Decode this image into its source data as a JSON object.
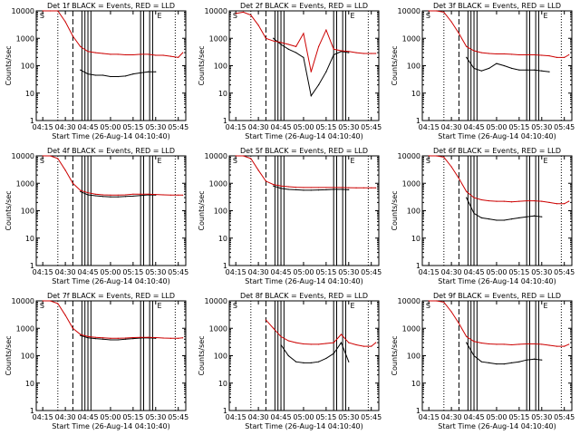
{
  "colors": {
    "events": "#000000",
    "lld": "#cc0000",
    "axis": "#000000"
  },
  "common": {
    "xlabel": "Start Time (26-Aug-14 04:10:40)",
    "ylabel": "Counts/sec",
    "x_tick_labels": [
      "04:15",
      "04:30",
      "04:45",
      "05:00",
      "05:15",
      "05:30",
      "05:45"
    ],
    "y_tick_labels": [
      "1",
      "10",
      "100",
      "1000",
      "10000"
    ]
  },
  "chart_data": [
    {
      "type": "line",
      "title": "Det 1f BLACK = Events, RED = LLD",
      "xlabel": "Start Time (26-Aug-14 04:10:40)",
      "ylabel": "Counts/sec",
      "yscale": "log",
      "ylim": [
        1,
        10000
      ],
      "xlim": [
        "04:10:40",
        "05:50"
      ],
      "x": [
        "04:15",
        "04:20",
        "04:25",
        "04:30",
        "04:35",
        "04:40",
        "04:45",
        "04:50",
        "04:55",
        "05:00",
        "05:05",
        "05:10",
        "05:15",
        "05:20",
        "05:25",
        "05:30",
        "05:35",
        "05:40",
        "05:45",
        "05:48"
      ],
      "series": [
        {
          "name": "Events",
          "values": [
            null,
            null,
            null,
            null,
            null,
            70,
            50,
            45,
            45,
            40,
            40,
            42,
            50,
            55,
            60,
            60,
            null,
            null,
            null,
            null
          ]
        },
        {
          "name": "LLD",
          "values": [
            10000,
            10000,
            10000,
            4000,
            1200,
            500,
            330,
            300,
            280,
            260,
            260,
            250,
            250,
            260,
            260,
            240,
            240,
            220,
            200,
            300
          ]
        }
      ],
      "vlines_dashed": [
        "04:35"
      ],
      "vlines_dotted": [
        "04:25",
        "05:43"
      ],
      "vlines_solid": [
        "04:41",
        "04:43",
        "04:45",
        "04:47",
        "05:20",
        "05:22",
        "05:26",
        "05:28"
      ],
      "markers": [
        "S",
        "E"
      ]
    },
    {
      "type": "line",
      "title": "Det 2f BLACK = Events, RED = LLD",
      "xlabel": "Start Time (26-Aug-14 04:10:40)",
      "ylabel": "Counts/sec",
      "yscale": "log",
      "ylim": [
        1,
        10000
      ],
      "xlim": [
        "04:10:40",
        "05:50"
      ],
      "x": [
        "04:15",
        "04:20",
        "04:25",
        "04:30",
        "04:35",
        "04:40",
        "04:45",
        "04:50",
        "04:55",
        "05:00",
        "05:05",
        "05:10",
        "05:15",
        "05:20",
        "05:25",
        "05:30",
        "05:35",
        "05:40",
        "05:45",
        "05:48"
      ],
      "series": [
        {
          "name": "Events",
          "values": [
            null,
            null,
            null,
            null,
            null,
            1000,
            600,
            400,
            300,
            200,
            8,
            20,
            60,
            250,
            330,
            300,
            null,
            null,
            null,
            null
          ]
        },
        {
          "name": "LLD",
          "values": [
            8000,
            9000,
            7000,
            3000,
            1000,
            800,
            700,
            600,
            500,
            1500,
            60,
            500,
            2000,
            400,
            350,
            330,
            300,
            280,
            280,
            280
          ]
        }
      ],
      "vlines_dashed": [
        "04:35"
      ],
      "vlines_dotted": [
        "04:25",
        "05:43"
      ],
      "vlines_solid": [
        "04:41",
        "04:43",
        "04:45",
        "04:47",
        "05:20",
        "05:22",
        "05:26",
        "05:28"
      ],
      "markers": [
        "S",
        "E"
      ]
    },
    {
      "type": "line",
      "title": "Det 3f BLACK = Events, RED = LLD",
      "xlabel": "Start Time (26-Aug-14 04:10:40)",
      "ylabel": "Counts/sec",
      "yscale": "log",
      "ylim": [
        1,
        10000
      ],
      "xlim": [
        "04:10:40",
        "05:50"
      ],
      "x": [
        "04:15",
        "04:20",
        "04:25",
        "04:30",
        "04:35",
        "04:40",
        "04:45",
        "04:50",
        "04:55",
        "05:00",
        "05:05",
        "05:10",
        "05:15",
        "05:20",
        "05:25",
        "05:30",
        "05:35",
        "05:40",
        "05:45",
        "05:48"
      ],
      "series": [
        {
          "name": "Events",
          "values": [
            null,
            null,
            null,
            null,
            null,
            200,
            80,
            65,
            80,
            120,
            100,
            80,
            70,
            70,
            70,
            65,
            60,
            null,
            null,
            null
          ]
        },
        {
          "name": "LLD",
          "values": [
            10000,
            10000,
            9000,
            4000,
            1500,
            500,
            350,
            300,
            280,
            270,
            270,
            260,
            250,
            250,
            250,
            240,
            230,
            200,
            200,
            250
          ]
        }
      ],
      "vlines_dashed": [
        "04:35"
      ],
      "vlines_dotted": [
        "04:25",
        "05:43"
      ],
      "vlines_solid": [
        "04:41",
        "04:43",
        "04:45",
        "04:47",
        "05:20",
        "05:22",
        "05:26",
        "05:28"
      ],
      "markers": [
        "S",
        "E"
      ]
    },
    {
      "type": "line",
      "title": "Det 4f BLACK = Events, RED = LLD",
      "xlabel": "Start Time (26-Aug-14 04:10:40)",
      "ylabel": "Counts/sec",
      "yscale": "log",
      "ylim": [
        1,
        10000
      ],
      "xlim": [
        "04:10:40",
        "05:50"
      ],
      "x": [
        "04:15",
        "04:20",
        "04:25",
        "04:30",
        "04:35",
        "04:40",
        "04:45",
        "04:50",
        "04:55",
        "05:00",
        "05:05",
        "05:10",
        "05:15",
        "05:20",
        "05:25",
        "05:30",
        "05:35",
        "05:40",
        "05:45",
        "05:48"
      ],
      "series": [
        {
          "name": "Events",
          "values": [
            null,
            null,
            null,
            null,
            null,
            500,
            380,
            350,
            330,
            320,
            320,
            330,
            340,
            360,
            380,
            370,
            null,
            null,
            null,
            null
          ]
        },
        {
          "name": "LLD",
          "values": [
            10000,
            10000,
            8000,
            3000,
            1000,
            550,
            450,
            400,
            380,
            370,
            370,
            380,
            400,
            400,
            400,
            390,
            380,
            370,
            370,
            370
          ]
        }
      ],
      "vlines_dashed": [
        "04:35"
      ],
      "vlines_dotted": [
        "04:25",
        "05:43"
      ],
      "vlines_solid": [
        "04:41",
        "04:43",
        "04:45",
        "04:47",
        "05:20",
        "05:22",
        "05:26",
        "05:28"
      ],
      "markers": [
        "S",
        "E"
      ]
    },
    {
      "type": "line",
      "title": "Det 5f BLACK = Events, RED = LLD",
      "xlabel": "Start Time (26-Aug-14 04:10:40)",
      "ylabel": "Counts/sec",
      "yscale": "log",
      "ylim": [
        1,
        10000
      ],
      "xlim": [
        "04:10:40",
        "05:50"
      ],
      "x": [
        "04:15",
        "04:20",
        "04:25",
        "04:30",
        "04:35",
        "04:40",
        "04:45",
        "04:50",
        "04:55",
        "05:00",
        "05:05",
        "05:10",
        "05:15",
        "05:20",
        "05:25",
        "05:30",
        "05:35",
        "05:40",
        "05:45",
        "05:48"
      ],
      "series": [
        {
          "name": "Events",
          "values": [
            null,
            null,
            null,
            null,
            null,
            800,
            650,
            600,
            580,
            560,
            560,
            570,
            580,
            600,
            600,
            580,
            null,
            null,
            null,
            null
          ]
        },
        {
          "name": "LLD",
          "values": [
            10000,
            10000,
            8000,
            3000,
            1200,
            900,
            800,
            750,
            720,
            700,
            700,
            700,
            700,
            700,
            700,
            690,
            680,
            680,
            680,
            680
          ]
        }
      ],
      "vlines_dashed": [
        "04:35"
      ],
      "vlines_dotted": [
        "04:25",
        "05:43"
      ],
      "vlines_solid": [
        "04:41",
        "04:43",
        "04:45",
        "04:47",
        "05:20",
        "05:22",
        "05:26",
        "05:28"
      ],
      "markers": [
        "S",
        "E"
      ]
    },
    {
      "type": "line",
      "title": "Det 6f BLACK = Events, RED = LLD",
      "xlabel": "Start Time (26-Aug-14 04:10:40)",
      "ylabel": "Counts/sec",
      "yscale": "log",
      "ylim": [
        1,
        10000
      ],
      "xlim": [
        "04:10:40",
        "05:50"
      ],
      "x": [
        "04:15",
        "04:20",
        "04:25",
        "04:30",
        "04:35",
        "04:40",
        "04:45",
        "04:50",
        "04:55",
        "05:00",
        "05:05",
        "05:10",
        "05:15",
        "05:20",
        "05:25",
        "05:30",
        "05:35",
        "05:40",
        "05:45",
        "05:48"
      ],
      "series": [
        {
          "name": "Events",
          "values": [
            null,
            null,
            null,
            null,
            null,
            300,
            80,
            55,
            50,
            45,
            45,
            50,
            55,
            60,
            65,
            60,
            null,
            null,
            null,
            null
          ]
        },
        {
          "name": "LLD",
          "values": [
            10000,
            10000,
            9000,
            4000,
            1500,
            500,
            300,
            250,
            230,
            220,
            220,
            210,
            220,
            230,
            230,
            220,
            200,
            180,
            180,
            220
          ]
        }
      ],
      "vlines_dashed": [
        "04:35"
      ],
      "vlines_dotted": [
        "04:25",
        "05:43"
      ],
      "vlines_solid": [
        "04:41",
        "04:43",
        "04:45",
        "04:47",
        "05:20",
        "05:22",
        "05:26",
        "05:28"
      ],
      "markers": [
        "S",
        "E"
      ]
    },
    {
      "type": "line",
      "title": "Det 7f BLACK = Events, RED = LLD",
      "xlabel": "Start Time (26-Aug-14 04:10:40)",
      "ylabel": "Counts/sec",
      "yscale": "log",
      "ylim": [
        1,
        10000
      ],
      "xlim": [
        "04:10:40",
        "05:50"
      ],
      "x": [
        "04:15",
        "04:20",
        "04:25",
        "04:30",
        "04:35",
        "04:40",
        "04:45",
        "04:50",
        "04:55",
        "05:00",
        "05:05",
        "05:10",
        "05:15",
        "05:20",
        "05:25",
        "05:30",
        "05:35",
        "05:40",
        "05:45",
        "05:48"
      ],
      "series": [
        {
          "name": "Events",
          "values": [
            null,
            null,
            null,
            null,
            null,
            550,
            450,
            420,
            400,
            380,
            380,
            400,
            420,
            440,
            450,
            430,
            null,
            null,
            null,
            null
          ]
        },
        {
          "name": "LLD",
          "values": [
            10000,
            10000,
            8000,
            3000,
            1000,
            600,
            500,
            470,
            450,
            430,
            430,
            440,
            460,
            470,
            470,
            460,
            440,
            430,
            430,
            450
          ]
        }
      ],
      "vlines_dashed": [
        "04:35"
      ],
      "vlines_dotted": [
        "04:25",
        "05:43"
      ],
      "vlines_solid": [
        "04:41",
        "04:43",
        "04:45",
        "04:47",
        "05:20",
        "05:22",
        "05:26",
        "05:28"
      ],
      "markers": [
        "S",
        "E"
      ]
    },
    {
      "type": "line",
      "title": "Det 8f BLACK = Events, RED = LLD",
      "xlabel": "Start Time (26-Aug-14 04:10:40)",
      "ylabel": "Counts/sec",
      "yscale": "log",
      "ylim": [
        1,
        10000
      ],
      "xlim": [
        "04:10:40",
        "05:50"
      ],
      "x": [
        "04:15",
        "04:20",
        "04:25",
        "04:30",
        "04:35",
        "04:40",
        "04:45",
        "04:50",
        "04:55",
        "05:00",
        "05:05",
        "05:10",
        "05:15",
        "05:20",
        "05:25",
        "05:30",
        "05:35",
        "05:40",
        "05:45",
        "05:48"
      ],
      "series": [
        {
          "name": "Events",
          "values": [
            null,
            null,
            null,
            null,
            null,
            null,
            250,
            100,
            60,
            55,
            55,
            60,
            80,
            120,
            300,
            60,
            null,
            null,
            null,
            null
          ]
        },
        {
          "name": "LLD",
          "values": [
            null,
            null,
            null,
            null,
            2000,
            1000,
            500,
            350,
            300,
            270,
            260,
            260,
            280,
            300,
            600,
            300,
            250,
            220,
            220,
            300
          ]
        }
      ],
      "vlines_dashed": [
        "04:35"
      ],
      "vlines_dotted": [
        "04:25",
        "05:43"
      ],
      "vlines_solid": [
        "04:41",
        "04:43",
        "04:45",
        "04:47",
        "05:20",
        "05:22",
        "05:26",
        "05:28"
      ],
      "markers": [
        "S",
        "E"
      ]
    },
    {
      "type": "line",
      "title": "Det 9f BLACK = Events, RED = LLD",
      "xlabel": "Start Time (26-Aug-14 04:10:40)",
      "ylabel": "Counts/sec",
      "yscale": "log",
      "ylim": [
        1,
        10000
      ],
      "xlim": [
        "04:10:40",
        "05:50"
      ],
      "x": [
        "04:15",
        "04:20",
        "04:25",
        "04:30",
        "04:35",
        "04:40",
        "04:45",
        "04:50",
        "04:55",
        "05:00",
        "05:05",
        "05:10",
        "05:15",
        "05:20",
        "05:25",
        "05:30",
        "05:35",
        "05:40",
        "05:45",
        "05:48"
      ],
      "series": [
        {
          "name": "Events",
          "values": [
            null,
            null,
            null,
            null,
            null,
            300,
            100,
            60,
            55,
            50,
            50,
            55,
            60,
            70,
            75,
            70,
            null,
            null,
            null,
            null
          ]
        },
        {
          "name": "LLD",
          "values": [
            10000,
            10000,
            9000,
            4000,
            1500,
            500,
            330,
            290,
            270,
            260,
            260,
            250,
            260,
            270,
            270,
            260,
            240,
            220,
            220,
            260
          ]
        }
      ],
      "vlines_dashed": [
        "04:35"
      ],
      "vlines_dotted": [
        "04:25",
        "05:43"
      ],
      "vlines_solid": [
        "04:41",
        "04:43",
        "04:45",
        "04:47",
        "05:20",
        "05:22",
        "05:26",
        "05:28"
      ],
      "markers": [
        "S",
        "E"
      ]
    }
  ]
}
